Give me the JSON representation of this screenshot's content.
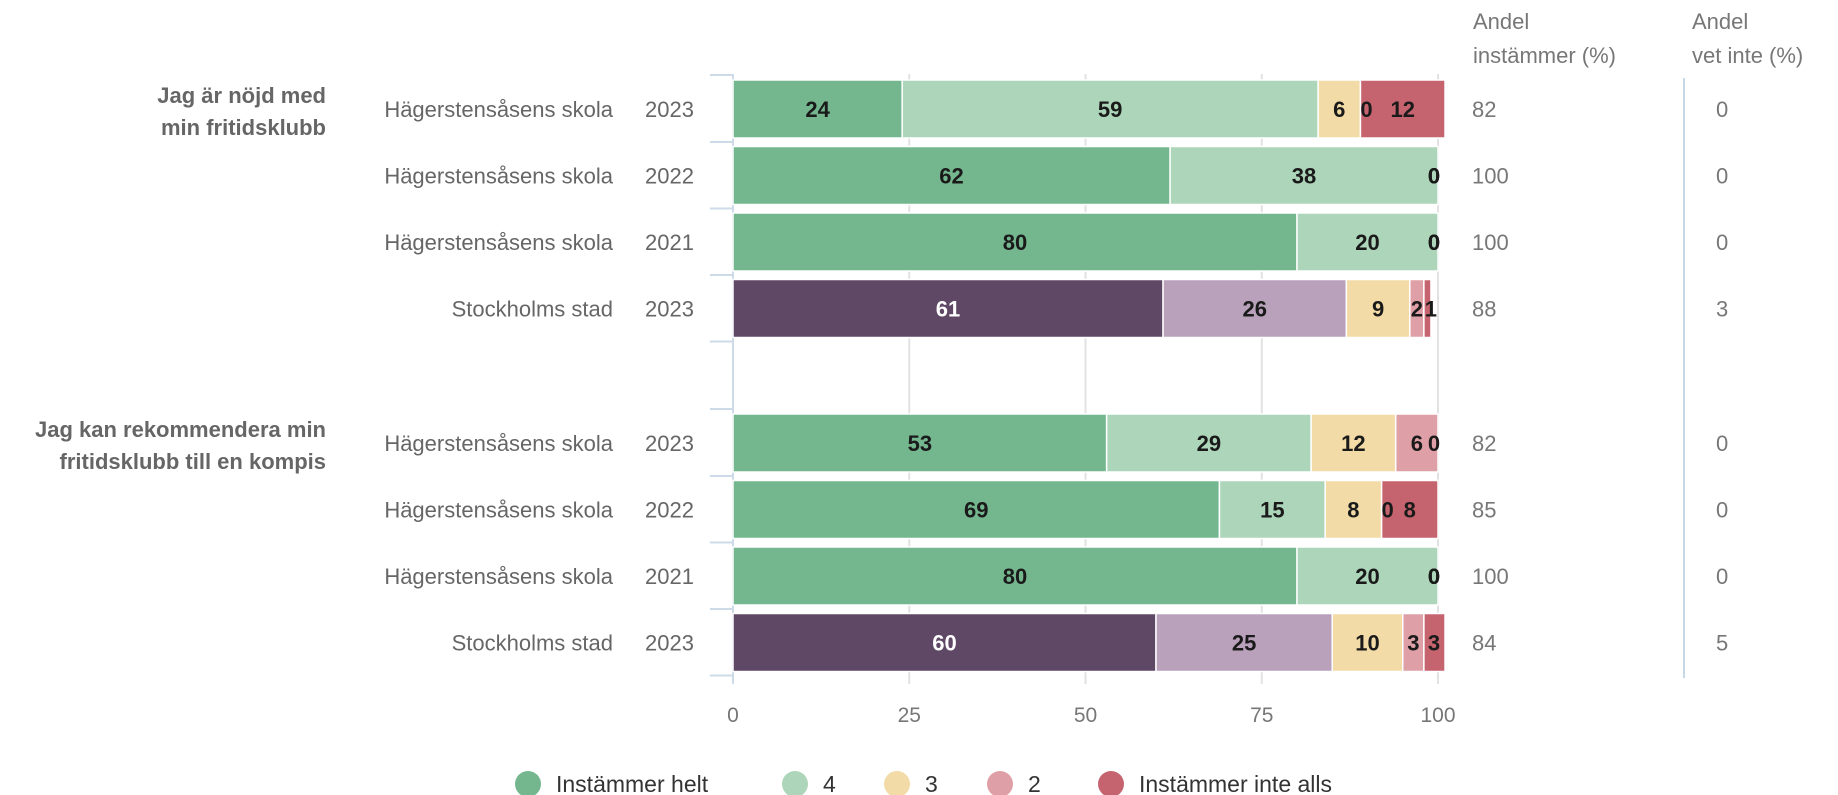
{
  "chart_data": {
    "type": "bar",
    "orientation": "horizontal",
    "stacked": true,
    "xlim": [
      0,
      100
    ],
    "x_ticks": [
      "0",
      "25",
      "50",
      "75",
      "100"
    ],
    "grid": true,
    "legend_position": "bottom",
    "column_headers": {
      "instammer": [
        "Andel",
        "instämmer (%)"
      ],
      "vet_inte": [
        "Andel",
        "vet inte (%)"
      ]
    },
    "series": [
      {
        "name": "Instämmer helt",
        "color": "#74b78f",
        "color_city": "#5f4766"
      },
      {
        "name": "4",
        "color": "#acd5b9",
        "color_city": "#b9a1bb"
      },
      {
        "name": "3",
        "color": "#f2dba6",
        "color_city": "#f2dba6"
      },
      {
        "name": "2",
        "color": "#dea0a6",
        "color_city": "#dea0a6"
      },
      {
        "name": "Instämmer inte alls",
        "color": "#c5646e",
        "color_city": "#c5646e"
      }
    ],
    "groups": [
      {
        "question": [
          "Jag är nöjd med",
          "min fritidsklubb"
        ],
        "rows": [
          {
            "entity": "Hägerstensåsens skola",
            "year": "2023",
            "values": [
              24,
              59,
              6,
              0,
              12
            ],
            "andel_instammer": "82",
            "andel_vet_inte": "0",
            "city": false
          },
          {
            "entity": "Hägerstensåsens skola",
            "year": "2022",
            "values": [
              62,
              38,
              0,
              0,
              0
            ],
            "andel_instammer": "100",
            "andel_vet_inte": "0",
            "city": false
          },
          {
            "entity": "Hägerstensåsens skola",
            "year": "2021",
            "values": [
              80,
              20,
              0,
              0,
              0
            ],
            "andel_instammer": "100",
            "andel_vet_inte": "0",
            "city": false
          },
          {
            "entity": "Stockholms stad",
            "year": "2023",
            "values": [
              61,
              26,
              9,
              2,
              1
            ],
            "andel_instammer": "88",
            "andel_vet_inte": "3",
            "city": true
          }
        ]
      },
      {
        "question": [
          "Jag kan rekommendera min",
          "fritidsklubb till en kompis"
        ],
        "rows": [
          {
            "entity": "Hägerstensåsens skola",
            "year": "2023",
            "values": [
              53,
              29,
              12,
              6,
              0
            ],
            "andel_instammer": "82",
            "andel_vet_inte": "0",
            "city": false
          },
          {
            "entity": "Hägerstensåsens skola",
            "year": "2022",
            "values": [
              69,
              15,
              8,
              0,
              8
            ],
            "andel_instammer": "85",
            "andel_vet_inte": "0",
            "city": false
          },
          {
            "entity": "Hägerstensåsens skola",
            "year": "2021",
            "values": [
              80,
              20,
              0,
              0,
              0
            ],
            "andel_instammer": "100",
            "andel_vet_inte": "0",
            "city": false
          },
          {
            "entity": "Stockholms stad",
            "year": "2023",
            "values": [
              60,
              25,
              10,
              3,
              3
            ],
            "andel_instammer": "84",
            "andel_vet_inte": "5",
            "city": true
          }
        ]
      }
    ]
  }
}
